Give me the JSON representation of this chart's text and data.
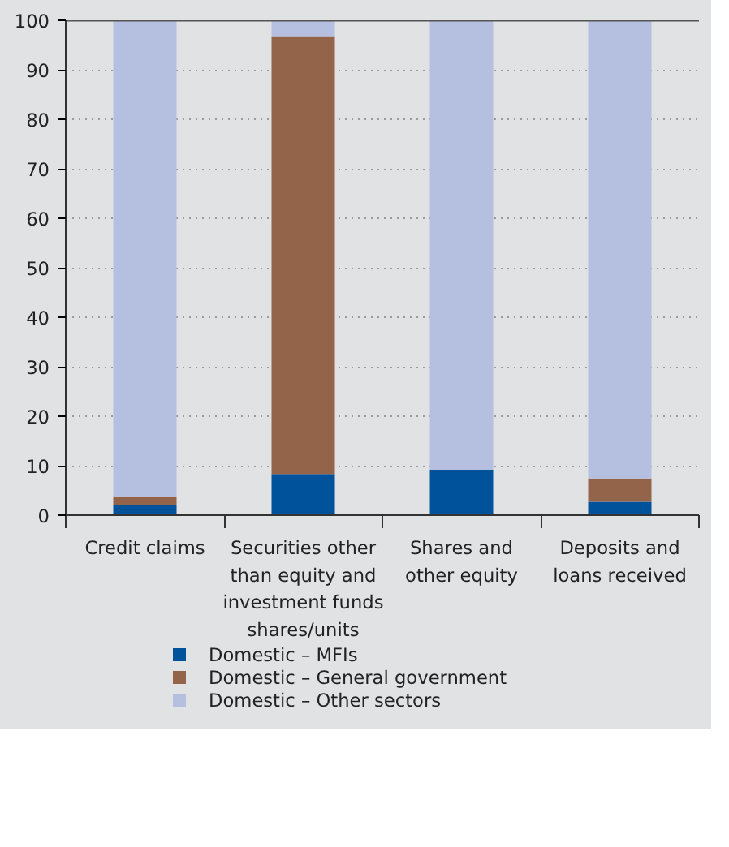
{
  "chart_data": {
    "type": "bar",
    "stacked": true,
    "categories": [
      "Credit claims",
      "Securities other\nthan equity and\ninvestment funds\nshares/units",
      "Shares and\nother equity",
      "Deposits and\nloans received"
    ],
    "series": [
      {
        "name": "Domestic – MFIs",
        "color": "#00539b",
        "values": [
          2.0,
          8.3,
          9.2,
          2.7
        ]
      },
      {
        "name": "Domestic – General government",
        "color": "#93634a",
        "values": [
          1.8,
          88.5,
          0,
          4.7
        ]
      },
      {
        "name": "Domestic – Other sectors",
        "color": "#b5bfdf",
        "values": [
          96.2,
          3.2,
          90.8,
          92.6
        ]
      }
    ],
    "ylim": [
      0,
      100
    ],
    "yticks": [
      0,
      10,
      20,
      30,
      40,
      50,
      60,
      70,
      80,
      90,
      100
    ],
    "grid": "y",
    "legend": "bottom"
  }
}
